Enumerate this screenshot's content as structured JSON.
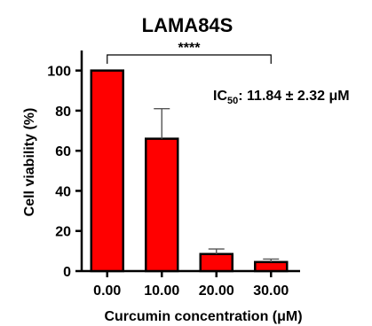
{
  "chart_data": {
    "type": "bar",
    "title": "LAMA84S",
    "xlabel": "Curcumin concentration (μM)",
    "ylabel": "Cell viability (%)",
    "categories": [
      "0.00",
      "10.00",
      "20.00",
      "30.00"
    ],
    "series": [
      {
        "values": [
          100,
          66,
          8.5,
          4.5
        ],
        "errors": [
          0,
          15,
          2.5,
          1.5
        ]
      }
    ],
    "ylim": [
      0,
      110
    ],
    "yticks": [
      0,
      20,
      40,
      60,
      80,
      100
    ],
    "bar_color": "#ff0000",
    "grid": false,
    "annotations": {
      "significance": "****",
      "ic50_prefix": "IC",
      "ic50_sub": "50",
      "ic50_value": ": 11.84 ± 2.32 μM"
    }
  }
}
